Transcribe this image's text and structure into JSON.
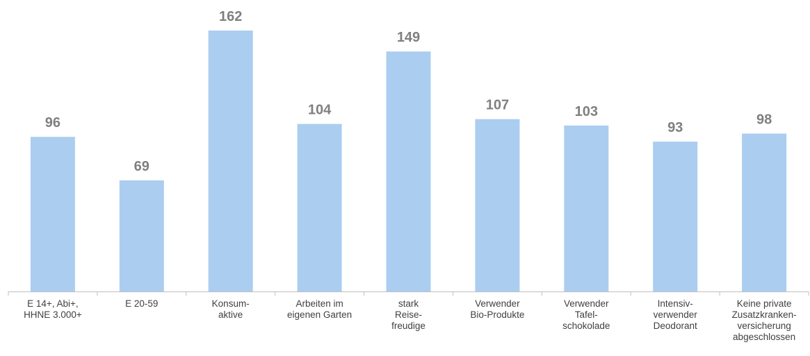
{
  "chart_data": {
    "type": "bar",
    "categories": [
      [
        "E 14+, Abi+,",
        "HHNE 3.000+"
      ],
      [
        "E 20-59"
      ],
      [
        "Konsum-",
        "aktive"
      ],
      [
        "Arbeiten im",
        "eigenen Garten"
      ],
      [
        "stark",
        "Reise-",
        "freudige"
      ],
      [
        "Verwender",
        "Bio-Produkte"
      ],
      [
        "Verwender",
        "Tafel-",
        "schokolade"
      ],
      [
        "Intensiv-",
        "verwender",
        "Deodorant"
      ],
      [
        "Keine private",
        "Zusatzkranken-",
        "versicherung",
        "abgeschlossen"
      ]
    ],
    "values": [
      96,
      69,
      162,
      104,
      149,
      107,
      103,
      93,
      98
    ],
    "value_labels": [
      "96",
      "69",
      "162",
      "104",
      "149",
      "107",
      "103",
      "93",
      "98"
    ],
    "ylim": [
      0,
      162
    ],
    "grid": false,
    "legend": "none",
    "colors": {
      "bar": "#abcdf0",
      "value_label": "#7f7f7f",
      "category_label": "#404040",
      "axis": "#bfbfbf"
    }
  }
}
